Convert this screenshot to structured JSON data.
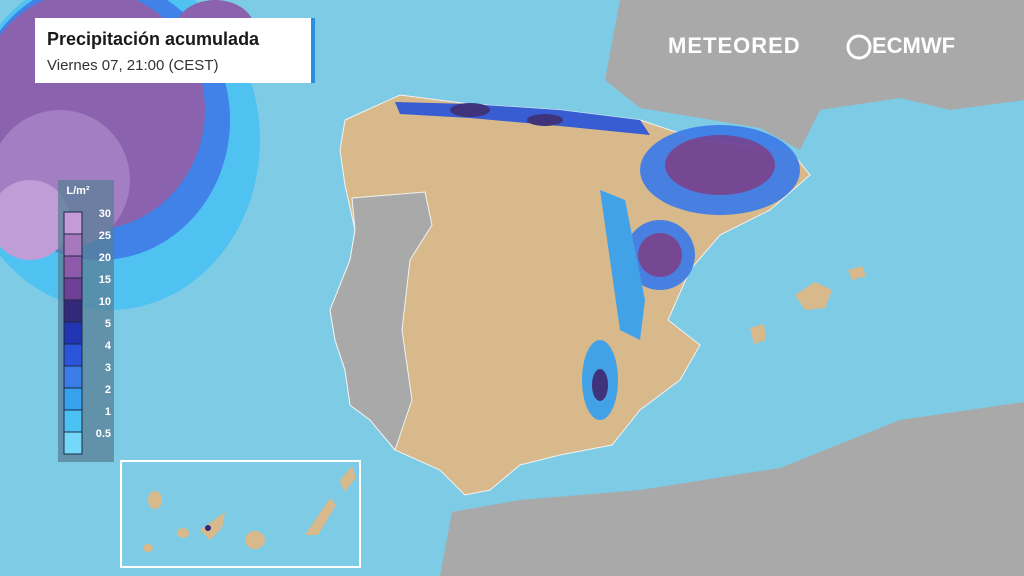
{
  "header": {
    "title": "Precipitación acumulada",
    "subtitle": "Viernes 07, 21:00 (CEST)"
  },
  "logos": {
    "provider": "METEORED",
    "model": "ECMWF"
  },
  "legend": {
    "unit": "L/m²",
    "items": [
      {
        "label": 30,
        "color": "#c69ad6"
      },
      {
        "label": 25,
        "color": "#a878bf"
      },
      {
        "label": 20,
        "color": "#8c5aa9"
      },
      {
        "label": 15,
        "color": "#6e3f94"
      },
      {
        "label": 10,
        "color": "#33287a"
      },
      {
        "label": 5,
        "color": "#2135b5"
      },
      {
        "label": 4,
        "color": "#2b55d9"
      },
      {
        "label": 3,
        "color": "#3b7ce9"
      },
      {
        "label": 2,
        "color": "#36a1ef"
      },
      {
        "label": 1,
        "color": "#4cc2f4"
      },
      {
        "label": 0.5,
        "color": "#74d9f8"
      }
    ]
  }
}
